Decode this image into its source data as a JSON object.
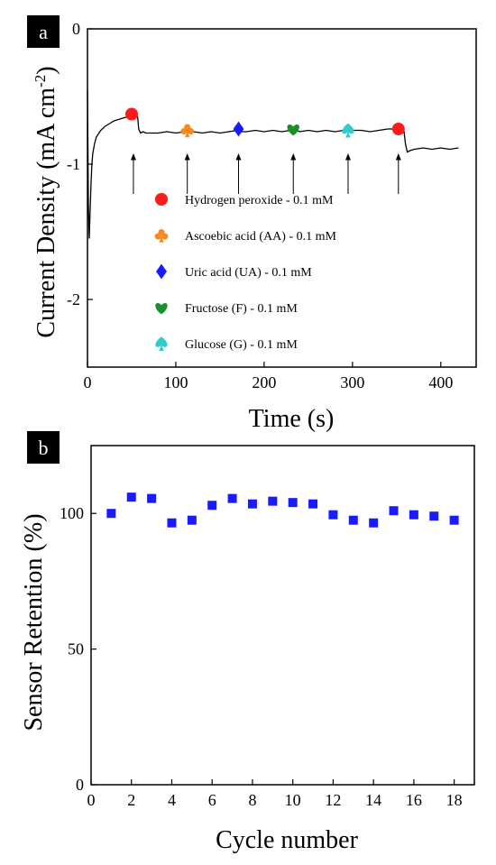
{
  "chart_data": [
    {
      "type": "line",
      "panel_label": "a",
      "xlabel": "Time (s)",
      "ylabel_main": "Current Density (mA cm",
      "ylabel_sup": "-2",
      "ylabel_close": ")",
      "xlim": [
        0,
        440
      ],
      "ylim": [
        -2.5,
        0
      ],
      "xticks": [
        0,
        100,
        200,
        300,
        400
      ],
      "yticks": [
        0,
        -1,
        -2
      ],
      "ytick_labels": [
        "0",
        "-1",
        "-2"
      ],
      "series": [
        {
          "x": [
            0,
            1,
            2,
            3,
            4,
            5,
            6,
            8,
            10,
            15,
            20,
            25,
            30,
            35,
            40,
            45,
            48,
            50,
            52,
            54,
            56,
            57,
            58,
            60,
            63,
            66,
            70,
            80,
            90,
            100,
            110,
            112,
            113,
            115,
            120,
            130,
            140,
            150,
            160,
            170,
            171,
            175,
            180,
            190,
            200,
            210,
            220,
            230,
            232,
            234,
            240,
            250,
            260,
            270,
            280,
            290,
            294,
            296,
            300,
            310,
            320,
            330,
            340,
            350,
            352,
            355,
            358,
            360,
            362,
            365,
            370,
            380,
            390,
            400,
            410,
            420
          ],
          "y": [
            -0.45,
            -1.3,
            -1.55,
            -1.35,
            -1.15,
            -1.0,
            -0.92,
            -0.85,
            -0.8,
            -0.75,
            -0.72,
            -0.7,
            -0.68,
            -0.67,
            -0.66,
            -0.65,
            -0.64,
            -0.63,
            -0.63,
            -0.63,
            -0.64,
            -0.66,
            -0.74,
            -0.77,
            -0.76,
            -0.77,
            -0.77,
            -0.77,
            -0.76,
            -0.77,
            -0.76,
            -0.74,
            -0.75,
            -0.77,
            -0.76,
            -0.77,
            -0.76,
            -0.77,
            -0.76,
            -0.75,
            -0.74,
            -0.76,
            -0.76,
            -0.75,
            -0.76,
            -0.75,
            -0.76,
            -0.75,
            -0.73,
            -0.74,
            -0.76,
            -0.75,
            -0.76,
            -0.75,
            -0.76,
            -0.75,
            -0.74,
            -0.74,
            -0.75,
            -0.75,
            -0.76,
            -0.75,
            -0.74,
            -0.74,
            -0.73,
            -0.74,
            -0.74,
            -0.85,
            -0.91,
            -0.9,
            -0.89,
            -0.88,
            -0.89,
            -0.88,
            -0.89,
            -0.88
          ]
        }
      ],
      "injections": [
        {
          "x": 50,
          "y": -0.63,
          "shape": "circle",
          "color": "#ff1a1a"
        },
        {
          "x": 113,
          "y": -0.75,
          "shape": "club",
          "color": "#f58a1f"
        },
        {
          "x": 171,
          "y": -0.74,
          "shape": "diamond",
          "color": "#1a1aff"
        },
        {
          "x": 233,
          "y": -0.74,
          "shape": "heart",
          "color": "#1b8f2a"
        },
        {
          "x": 295,
          "y": -0.75,
          "shape": "spade",
          "color": "#33cccc"
        },
        {
          "x": 352,
          "y": -0.74,
          "shape": "circle",
          "color": "#ff1a1a"
        }
      ],
      "arrows_x": [
        52,
        113,
        171,
        233,
        295,
        352
      ],
      "legend": [
        {
          "label": "Hydrogen peroxide - 0.1 mM",
          "shape": "circle",
          "color": "#ff1a1a"
        },
        {
          "label": "Ascoebic acid (AA) - 0.1 mM",
          "shape": "club",
          "color": "#f58a1f"
        },
        {
          "label": "Uric acid (UA) - 0.1 mM",
          "shape": "diamond",
          "color": "#1a1aff"
        },
        {
          "label": "Fructose (F) - 0.1 mM",
          "shape": "heart",
          "color": "#1b8f2a"
        },
        {
          "label": "Glucose (G) - 0.1 mM",
          "shape": "spade",
          "color": "#33cccc"
        }
      ]
    },
    {
      "type": "scatter",
      "panel_label": "b",
      "xlabel": "Cycle number",
      "ylabel": "Sensor Retention (%)",
      "xlim": [
        0,
        19
      ],
      "ylim": [
        0,
        125
      ],
      "xticks": [
        0,
        2,
        4,
        6,
        8,
        10,
        12,
        14,
        16,
        18
      ],
      "yticks": [
        0,
        50,
        100
      ],
      "marker_color": "#1a1aff",
      "series": [
        {
          "x": [
            1,
            2,
            3,
            4,
            5,
            6,
            7,
            8,
            9,
            10,
            11,
            12,
            13,
            14,
            15,
            16,
            17,
            18
          ],
          "y": [
            100,
            106,
            105.5,
            96.5,
            97.5,
            103,
            105.5,
            103.5,
            104.5,
            104,
            103.5,
            99.5,
            97.5,
            96.5,
            101,
            99.5,
            99,
            97.5
          ]
        }
      ]
    }
  ]
}
